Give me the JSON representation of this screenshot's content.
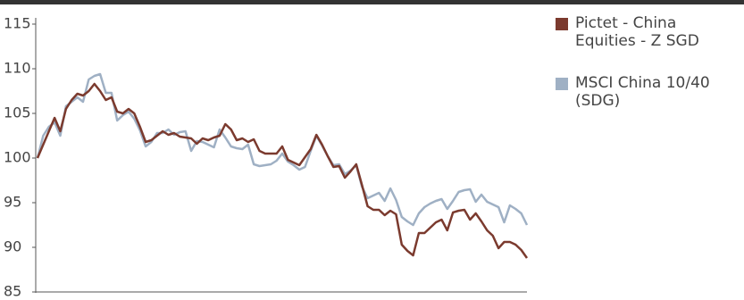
{
  "chart_data": {
    "type": "line",
    "ylim": [
      85,
      115
    ],
    "yticks": [
      85,
      90,
      95,
      100,
      105,
      110,
      115
    ],
    "series": [
      {
        "name": "MSCI China 10/40 (SDG)",
        "color": "#9fb0c4",
        "values": [
          100,
          102.5,
          103.5,
          104,
          102.5,
          105.8,
          106.3,
          106.8,
          106.3,
          108.8,
          109.2,
          109.4,
          107.3,
          107.3,
          104.2,
          104.8,
          105.2,
          104.4,
          103.1,
          101.3,
          101.8,
          102.8,
          102.8,
          103.2,
          102.6,
          102.9,
          103,
          100.8,
          101.9,
          101.8,
          101.5,
          101.2,
          103.2,
          102.3,
          101.3,
          101.1,
          101,
          101.5,
          99.3,
          99.1,
          99.2,
          99.3,
          99.7,
          100.5,
          99.6,
          99.2,
          98.7,
          99,
          100.8,
          102.5,
          101.4,
          100.2,
          99.2,
          99.3,
          98.2,
          98.6,
          99.2,
          96.8,
          95.5,
          95.8,
          96.1,
          95.2,
          96.6,
          95.3,
          93.4,
          92.9,
          92.5,
          93.8,
          94.5,
          94.9,
          95.2,
          95.4,
          94.3,
          95.2,
          96.2,
          96.4,
          96.5,
          95.1,
          95.9,
          95.1,
          94.8,
          94.5,
          92.8,
          94.7,
          94.3,
          93.8,
          92.5
        ]
      },
      {
        "name": "Pictet - China Equities - Z SGD",
        "color": "#7b3a2e",
        "values": [
          100,
          101.5,
          103,
          104.5,
          103,
          105.5,
          106.5,
          107.2,
          107,
          107.5,
          108.3,
          107.5,
          106.5,
          106.8,
          105.2,
          105,
          105.5,
          105,
          103.5,
          101.8,
          102,
          102.5,
          103,
          102.6,
          102.8,
          102.4,
          102.3,
          102.2,
          101.6,
          102.2,
          102,
          102.3,
          102.5,
          103.8,
          103.2,
          102,
          102.2,
          101.8,
          102.1,
          100.8,
          100.5,
          100.5,
          100.5,
          101.3,
          99.8,
          99.5,
          99.2,
          100.1,
          101,
          102.6,
          101.5,
          100.2,
          99,
          99.1,
          97.8,
          98.5,
          99.3,
          97,
          94.6,
          94.2,
          94.2,
          93.6,
          94.1,
          93.7,
          90.3,
          89.6,
          89.1,
          91.6,
          91.6,
          92.2,
          92.8,
          93.1,
          91.9,
          93.9,
          94.1,
          94.2,
          93.1,
          93.8,
          92.9,
          91.9,
          91.3,
          89.9,
          90.6,
          90.6,
          90.3,
          89.7,
          88.8
        ]
      }
    ]
  }
}
